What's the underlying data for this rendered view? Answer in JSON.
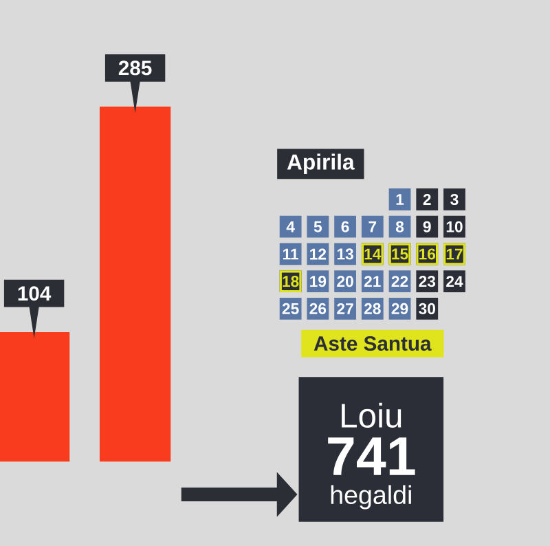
{
  "chart_data": [
    {
      "type": "bar",
      "categories": [
        null,
        null
      ],
      "values": [
        104,
        285
      ],
      "color": "#fa3c1e",
      "data_labels": true
    },
    {
      "type": "heatmap",
      "title": "Apirila",
      "categories": [
        null,
        null,
        null,
        null,
        null,
        null,
        null
      ],
      "y_categories": [
        null,
        null,
        null,
        null,
        null
      ],
      "cells": [
        [
          null,
          null,
          null,
          null,
          1,
          2,
          3
        ],
        [
          4,
          5,
          6,
          7,
          8,
          9,
          10
        ],
        [
          11,
          12,
          13,
          14,
          15,
          16,
          17
        ],
        [
          18,
          19,
          20,
          21,
          22,
          23,
          24
        ],
        [
          25,
          26,
          27,
          28,
          29,
          30,
          null
        ]
      ],
      "colors": [
        [
          null,
          null,
          null,
          null,
          "#5877a6",
          "#2b2e37",
          "#2b2e37"
        ],
        [
          "#5877a6",
          "#5877a6",
          "#5877a6",
          "#5877a6",
          "#5877a6",
          "#2b2e37",
          "#2b2e37"
        ],
        [
          "#5877a6",
          "#5877a6",
          "#5877a6",
          "#dfe41c",
          "#dfe41c",
          "#dfe41c",
          "#dfe41c"
        ],
        [
          "#dfe41c",
          "#5877a6",
          "#5877a6",
          "#5877a6",
          "#5877a6",
          "#2b2e37",
          "#2b2e37"
        ],
        [
          "#5877a6",
          "#5877a6",
          "#5877a6",
          "#5877a6",
          "#5877a6",
          "#2b2e37",
          null
        ]
      ],
      "data_labels": true,
      "annotations": [
        "Aste Santua"
      ]
    },
    {
      "type": "other",
      "title": "Loiu",
      "values": [
        741
      ],
      "data_labels": true,
      "annotations": [
        "hegaldi"
      ],
      "color": "#2b2e37"
    }
  ]
}
